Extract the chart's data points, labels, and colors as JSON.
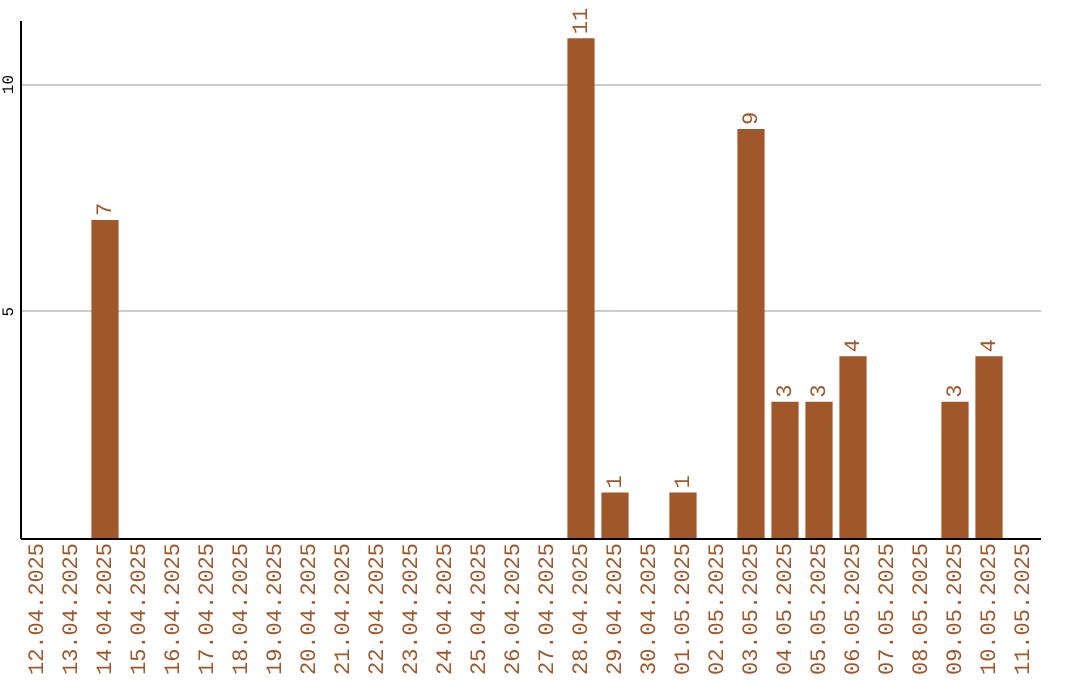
{
  "chart_data": {
    "type": "bar",
    "categories": [
      "12.04.2025",
      "13.04.2025",
      "14.04.2025",
      "15.04.2025",
      "16.04.2025",
      "17.04.2025",
      "18.04.2025",
      "19.04.2025",
      "20.04.2025",
      "21.04.2025",
      "22.04.2025",
      "23.04.2025",
      "24.04.2025",
      "25.04.2025",
      "26.04.2025",
      "27.04.2025",
      "28.04.2025",
      "29.04.2025",
      "30.04.2025",
      "01.05.2025",
      "02.05.2025",
      "03.05.2025",
      "04.05.2025",
      "05.05.2025",
      "06.05.2025",
      "07.05.2025",
      "08.05.2025",
      "09.05.2025",
      "10.05.2025",
      "11.05.2025"
    ],
    "values": [
      null,
      null,
      7,
      null,
      null,
      null,
      null,
      null,
      null,
      null,
      null,
      null,
      null,
      null,
      null,
      null,
      11,
      1,
      null,
      1,
      null,
      9,
      3,
      3,
      4,
      null,
      null,
      3,
      4,
      null
    ],
    "color": "#a0572a",
    "ylim": [
      0,
      11.4
    ],
    "yticks": [
      5,
      10
    ],
    "grid": "y",
    "data_labels": true
  }
}
